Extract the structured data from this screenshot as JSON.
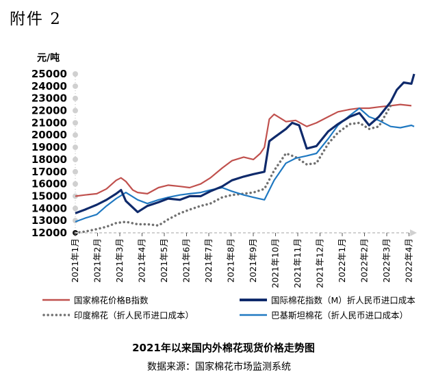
{
  "header": {
    "attachment": "附件 2"
  },
  "footer": {
    "title": "2021年以来国内外棉花现货价格走势图",
    "source": "数据来源：国家棉花市场监测系统"
  },
  "chart_data": {
    "type": "line",
    "title": "2021年以来国内外棉花现货价格走势图",
    "ylabel": "元/吨",
    "xlabel": "",
    "ylim": [
      12000,
      25000
    ],
    "yticks": [
      12000,
      13000,
      14000,
      15000,
      16000,
      17000,
      18000,
      19000,
      20000,
      21000,
      22000,
      23000,
      24000,
      25000
    ],
    "x_range": [
      "2021-01-01",
      "2022-05-05"
    ],
    "x_tick_labels": [
      "2021年1月",
      "2021年2月",
      "2021年3月",
      "2021年4月",
      "2021年5月",
      "2021年6月",
      "2021年7月",
      "2021年8月",
      "2021年9月",
      "2021年10月",
      "2021年11月",
      "2021年12月",
      "2022年1月",
      "2022年2月",
      "2022年3月",
      "2022年4月"
    ],
    "grid": false,
    "legend_position": "bottom",
    "series": [
      {
        "name": "国家棉花价格B指数",
        "color": "#c0504d",
        "style": "solid",
        "x": [
          "2021-01-01",
          "2021-01-15",
          "2021-02-01",
          "2021-02-15",
          "2021-03-01",
          "2021-03-08",
          "2021-03-15",
          "2021-03-25",
          "2021-04-01",
          "2021-04-15",
          "2021-05-01",
          "2021-05-15",
          "2021-06-01",
          "2021-06-15",
          "2021-07-01",
          "2021-07-15",
          "2021-08-01",
          "2021-08-15",
          "2021-09-01",
          "2021-09-15",
          "2021-09-25",
          "2021-10-01",
          "2021-10-08",
          "2021-10-15",
          "2021-11-01",
          "2021-11-15",
          "2021-12-01",
          "2021-12-15",
          "2022-01-01",
          "2022-01-15",
          "2022-02-01",
          "2022-02-15",
          "2022-03-01",
          "2022-03-15",
          "2022-04-01",
          "2022-04-15",
          "2022-05-01"
        ],
        "y": [
          15000,
          15100,
          15200,
          15600,
          16300,
          16500,
          16200,
          15500,
          15300,
          15200,
          15700,
          15900,
          15800,
          15700,
          16000,
          16500,
          17300,
          17900,
          18200,
          18000,
          18500,
          19000,
          21300,
          21700,
          21100,
          21200,
          20700,
          21000,
          21500,
          21900,
          22100,
          22200,
          22200,
          22300,
          22400,
          22500,
          22400
        ]
      },
      {
        "name": "国际棉花指数（M）折人民币进口成本",
        "color": "#0f2a6b",
        "style": "solid",
        "x": [
          "2021-01-01",
          "2021-01-15",
          "2021-02-01",
          "2021-02-15",
          "2021-03-01",
          "2021-03-08",
          "2021-03-15",
          "2021-04-01",
          "2021-04-15",
          "2021-05-01",
          "2021-05-15",
          "2021-06-01",
          "2021-06-15",
          "2021-07-01",
          "2021-07-15",
          "2021-08-01",
          "2021-08-15",
          "2021-09-01",
          "2021-09-15",
          "2021-10-01",
          "2021-10-08",
          "2021-10-15",
          "2021-11-01",
          "2021-11-10",
          "2021-11-20",
          "2021-12-01",
          "2021-12-15",
          "2022-01-01",
          "2022-01-15",
          "2022-02-01",
          "2022-02-15",
          "2022-03-01",
          "2022-03-15",
          "2022-04-01",
          "2022-04-10",
          "2022-04-20",
          "2022-05-01",
          "2022-05-05"
        ],
        "y": [
          13600,
          13900,
          14300,
          14700,
          15200,
          15500,
          14600,
          13700,
          14200,
          14500,
          14800,
          14700,
          15000,
          15000,
          15400,
          15800,
          16300,
          16600,
          16800,
          17000,
          19500,
          19800,
          20500,
          21000,
          20800,
          18900,
          19100,
          20300,
          20900,
          21500,
          21800,
          20800,
          21500,
          22700,
          23700,
          24300,
          24200,
          25000
        ]
      },
      {
        "name": "印度棉花（折人民币进口成本）",
        "color": "#707070",
        "style": "dotted",
        "x": [
          "2021-01-01",
          "2021-01-15",
          "2021-02-01",
          "2021-02-15",
          "2021-03-01",
          "2021-03-15",
          "2021-04-01",
          "2021-04-15",
          "2021-05-01",
          "2021-05-15",
          "2021-06-01",
          "2021-06-15",
          "2021-07-01",
          "2021-07-15",
          "2021-08-01",
          "2021-08-15",
          "2021-09-01",
          "2021-09-15",
          "2021-10-01",
          "2021-10-15",
          "2021-11-01",
          "2021-11-15",
          "2021-12-01",
          "2021-12-15",
          "2022-01-01",
          "2022-01-15",
          "2022-02-01",
          "2022-02-15",
          "2022-03-01",
          "2022-03-15",
          "2022-04-01"
        ],
        "y": [
          12000,
          12100,
          12300,
          12500,
          12800,
          12900,
          12700,
          12700,
          12600,
          13100,
          13600,
          13900,
          14200,
          14400,
          14900,
          15100,
          15200,
          15300,
          15600,
          17100,
          18500,
          18200,
          17600,
          17700,
          19300,
          20200,
          20900,
          21000,
          20500,
          20700,
          22400
        ]
      },
      {
        "name": "巴基斯坦棉花（折人民币进口成本）",
        "color": "#1f78c1",
        "style": "solid",
        "x": [
          "2021-01-01",
          "2021-01-15",
          "2021-02-01",
          "2021-02-15",
          "2021-03-01",
          "2021-03-15",
          "2021-04-01",
          "2021-04-15",
          "2021-05-01",
          "2021-05-15",
          "2021-06-01",
          "2021-06-15",
          "2021-07-01",
          "2021-07-15",
          "2021-08-01",
          "2021-08-15",
          "2021-09-01",
          "2021-09-15",
          "2021-10-01",
          "2021-10-15",
          "2021-11-01",
          "2021-11-15",
          "2021-12-01",
          "2021-12-15",
          "2022-01-01",
          "2022-01-15",
          "2022-02-01",
          "2022-02-15",
          "2022-03-01",
          "2022-03-15",
          "2022-04-01",
          "2022-04-15",
          "2022-05-01",
          "2022-05-05"
        ],
        "y": [
          12900,
          13200,
          13500,
          14200,
          14800,
          15300,
          14700,
          14400,
          14700,
          14900,
          15100,
          15200,
          15300,
          15500,
          15700,
          15400,
          15100,
          14900,
          14700,
          16300,
          17700,
          18100,
          18300,
          18500,
          19700,
          20800,
          21600,
          22200,
          21500,
          21200,
          20700,
          20600,
          20800,
          20700
        ]
      }
    ]
  }
}
